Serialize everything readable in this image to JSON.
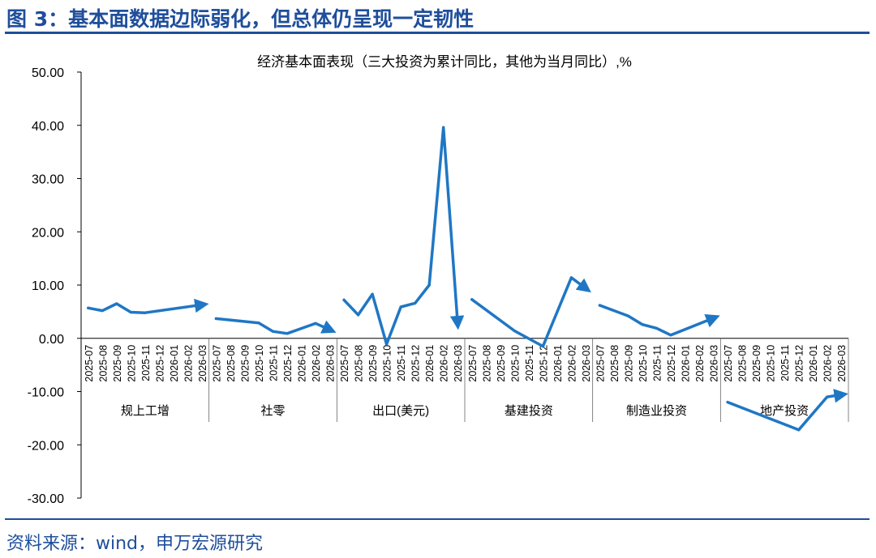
{
  "figure_title": "图 3：基本面数据边际弱化，但总体仍呈现一定韧性",
  "source_text": "资料来源：wind，申万宏源研究",
  "colors": {
    "brand": "#1f4e9b",
    "series": "#1f77c4",
    "axis": "#000000"
  },
  "chart_data": {
    "type": "line",
    "title": "经济基本面表现（三大投资为累计同比，其他为当月同比）,%",
    "ylim": [
      -30,
      50
    ],
    "yticks": [
      "50.00",
      "40.00",
      "30.00",
      "20.00",
      "10.00",
      "0.00",
      "-10.00",
      "-20.00",
      "-30.00"
    ],
    "ytick_values": [
      50,
      40,
      30,
      20,
      10,
      0,
      -10,
      -20,
      -30
    ],
    "x": [
      "2025-07",
      "2025-08",
      "2025-09",
      "2025-10",
      "2025-11",
      "2025-12",
      "2026-01",
      "2026-02",
      "2026-03"
    ],
    "groups": [
      {
        "name": "规上工增",
        "values": [
          5.7,
          5.2,
          6.5,
          4.9,
          4.8,
          null,
          null,
          null,
          6.3
        ]
      },
      {
        "name": "社零",
        "values": [
          3.7,
          null,
          null,
          2.9,
          1.3,
          0.9,
          null,
          2.8,
          1.6
        ]
      },
      {
        "name": "出口(美元)",
        "values": [
          7.2,
          4.4,
          8.3,
          -1.1,
          5.9,
          6.6,
          10.0,
          39.6,
          2.9
        ]
      },
      {
        "name": "基建投资",
        "values": [
          7.3,
          null,
          null,
          1.4,
          null,
          -1.5,
          null,
          11.4,
          9.4
        ]
      },
      {
        "name": "制造业投资",
        "values": [
          6.2,
          null,
          4.2,
          2.6,
          1.9,
          0.6,
          null,
          null,
          3.8
        ]
      },
      {
        "name": "地产投资",
        "values": [
          -12.0,
          null,
          null,
          null,
          null,
          -17.2,
          null,
          -11.0,
          -10.6
        ]
      }
    ]
  }
}
